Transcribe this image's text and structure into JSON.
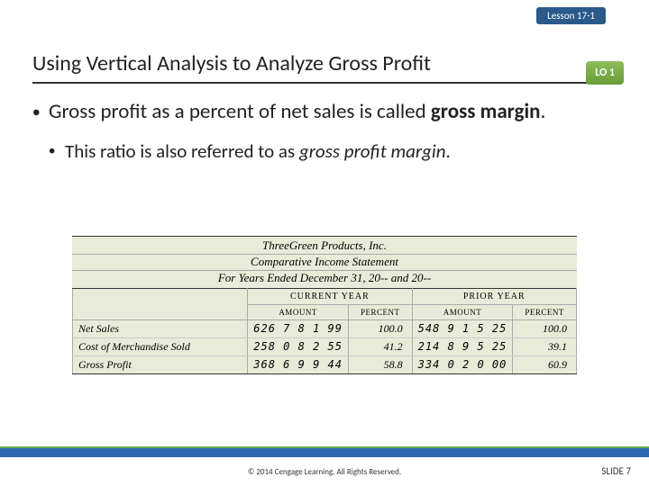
{
  "lesson_badge": "Lesson 17-1",
  "title": "Using Vertical Analysis to Analyze Gross Profit",
  "lo_badge": "LO 1",
  "bullet1_a": "Gross profit as a percent of net sales is called ",
  "bullet1_b": "gross margin",
  "bullet1_c": ".",
  "bullet2_a": "This ratio is also referred to as ",
  "bullet2_b": "gross profit margin",
  "bullet2_c": ".",
  "stmt_company": "ThreeGreen Products, Inc.",
  "stmt_title": "Comparative Income Statement",
  "stmt_period": "For Years Ended December 31, 20-- and 20--",
  "col_current": "CURRENT YEAR",
  "col_prior": "PRIOR YEAR",
  "col_amount": "AMOUNT",
  "col_percent": "PERCENT",
  "rows": [
    {
      "label": "Net Sales",
      "cur_amt": "626 7 8 1 99",
      "cur_pct": "100.0",
      "pri_amt": "548 9 1 5 25",
      "pri_pct": "100.0"
    },
    {
      "label": "Cost of Merchandise Sold",
      "cur_amt": "258 0 8 2 55",
      "cur_pct": "41.2",
      "pri_amt": "214 8 9 5 25",
      "pri_pct": "39.1"
    },
    {
      "label": "Gross Profit",
      "cur_amt": "368 6 9 9 44",
      "cur_pct": "58.8",
      "pri_amt": "334 0 2 0 00",
      "pri_pct": "60.9"
    }
  ],
  "copyright": "© 2014 Cengage Learning. All Rights Reserved.",
  "slide": "SLIDE 7"
}
